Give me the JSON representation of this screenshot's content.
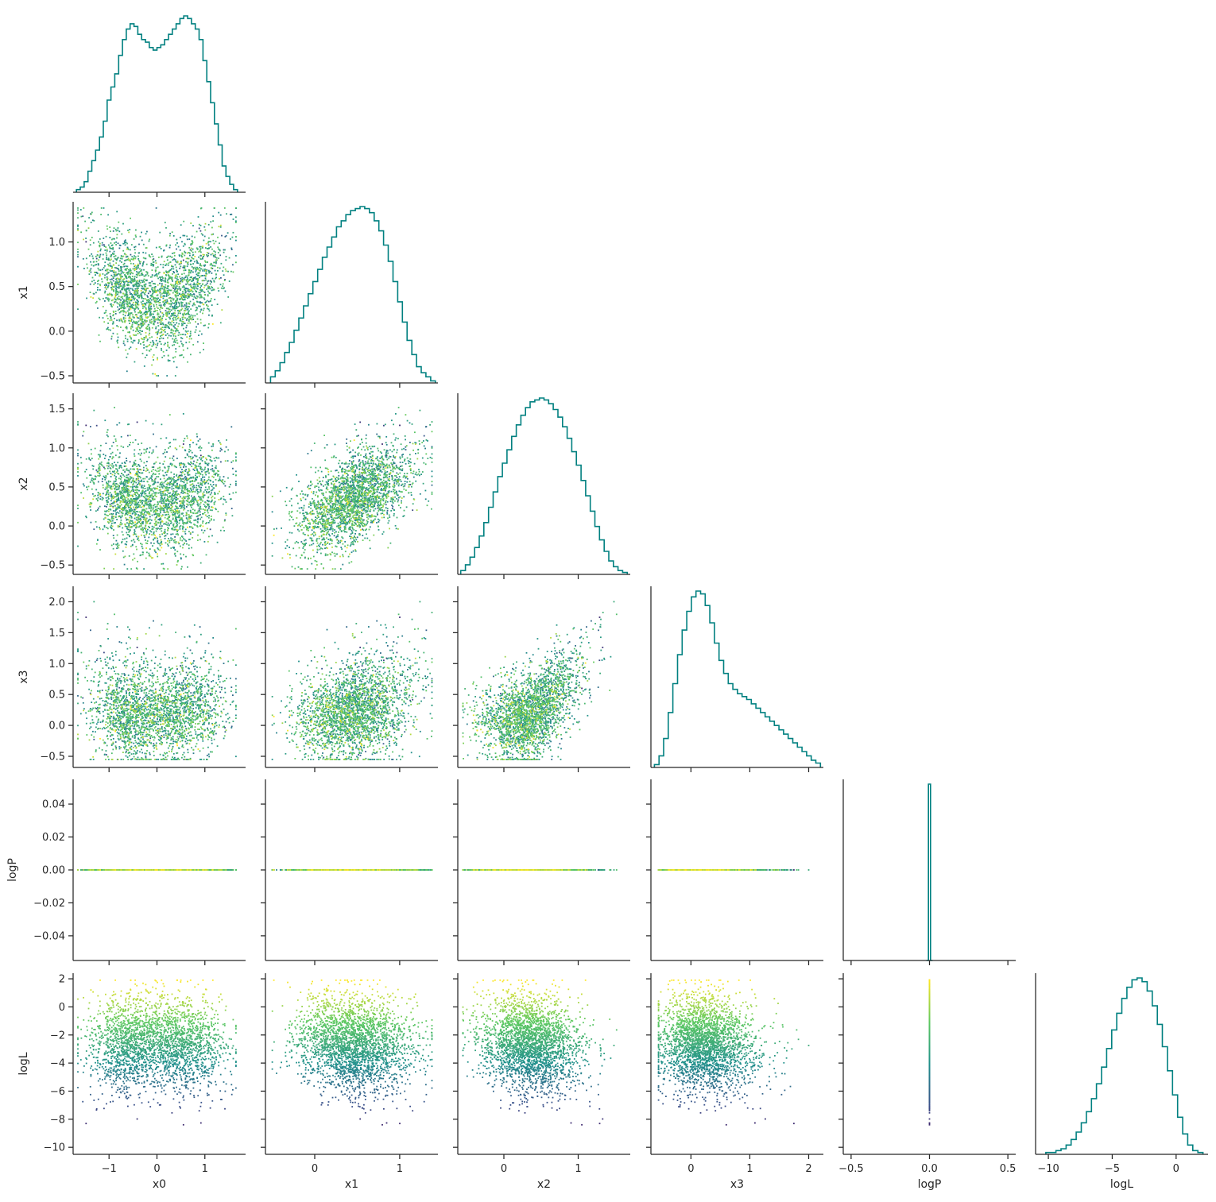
{
  "chart_data": {
    "type": "scatter",
    "subtype": "corner-plot",
    "parameters": [
      "x0",
      "x1",
      "x2",
      "x3",
      "logP",
      "logL"
    ],
    "axis_labels": [
      "x0",
      "x1",
      "x2",
      "x3",
      "logP",
      "logL"
    ],
    "diagonal": "histogram",
    "hist_color": "#008080",
    "point_color_by": "logL",
    "colormap": "viridis",
    "colormap_stops": [
      "#440154",
      "#3b528b",
      "#21918c",
      "#5ec962",
      "#fde725"
    ],
    "grid": false,
    "n_points_drawn": 2600,
    "axes": {
      "x0": {
        "lim": [
          -1.75,
          1.85
        ],
        "ticks": [
          -1,
          0,
          1
        ],
        "tick_labels": [
          "−1",
          "0",
          "1"
        ]
      },
      "x1": {
        "lim": [
          -0.58,
          1.45
        ],
        "ticks": [
          -0.5,
          0.0,
          0.5,
          1.0
        ],
        "tick_labels": [
          "−0.5",
          "0.0",
          "0.5",
          "1.0"
        ],
        "xticks": [
          0,
          1
        ],
        "xtick_labels": [
          "0",
          "1"
        ]
      },
      "x2": {
        "lim": [
          -0.62,
          1.7
        ],
        "ticks": [
          -0.5,
          0.0,
          0.5,
          1.0,
          1.5
        ],
        "tick_labels": [
          "−0.5",
          "0.0",
          "0.5",
          "1.0",
          "1.5"
        ],
        "xticks": [
          0,
          1
        ],
        "xtick_labels": [
          "0",
          "1"
        ]
      },
      "x3": {
        "lim": [
          -0.68,
          2.25
        ],
        "ticks": [
          -0.5,
          0.0,
          0.5,
          1.0,
          1.5,
          2.0
        ],
        "tick_labels": [
          "−0.5",
          "0.0",
          "0.5",
          "1.0",
          "1.5",
          "2.0"
        ],
        "xticks": [
          0,
          1,
          2
        ],
        "xtick_labels": [
          "0",
          "1",
          "2"
        ]
      },
      "logP": {
        "lim": [
          -0.055,
          0.055
        ],
        "ticks": [
          -0.04,
          -0.02,
          0.0,
          0.02,
          0.04
        ],
        "tick_labels": [
          "−0.04",
          "−0.02",
          "0.00",
          "0.02",
          "0.04"
        ],
        "xlim": [
          -0.55,
          0.55
        ],
        "xticks": [
          -0.5,
          0.0,
          0.5
        ],
        "xtick_labels": [
          "−0.5",
          "0.0",
          "0.5"
        ]
      },
      "logL": {
        "lim": [
          -10.5,
          2.4
        ],
        "ticks": [
          -10,
          -8,
          -6,
          -4,
          -2,
          0,
          2
        ],
        "tick_labels": [
          "−10",
          "−8",
          "−6",
          "−4",
          "−2",
          "0",
          "2"
        ],
        "xlim": [
          -11,
          2.5
        ],
        "xticks": [
          -10,
          -5,
          0
        ],
        "xtick_labels": [
          "−10",
          "−5",
          "0"
        ]
      }
    },
    "histograms": {
      "x0": {
        "range": [
          -1.68,
          1.68
        ],
        "counts": [
          1,
          2,
          4,
          8,
          12,
          16,
          21,
          27,
          35,
          40,
          45,
          52,
          58,
          62,
          64,
          63,
          60,
          58,
          57,
          55,
          54,
          55,
          56,
          58,
          60,
          62,
          64,
          66,
          67,
          66,
          64,
          62,
          58,
          50,
          42,
          34,
          26,
          18,
          10,
          6,
          3,
          1
        ]
      },
      "x1": {
        "range": [
          -0.52,
          1.42
        ],
        "counts": [
          3,
          6,
          10,
          15,
          20,
          26,
          32,
          38,
          44,
          50,
          56,
          62,
          67,
          72,
          77,
          80,
          83,
          85,
          86,
          87,
          86,
          84,
          80,
          75,
          68,
          60,
          50,
          40,
          30,
          21,
          14,
          8,
          5,
          3,
          1
        ]
      },
      "x2": {
        "range": [
          -0.58,
          1.66
        ],
        "counts": [
          2,
          5,
          9,
          14,
          20,
          27,
          35,
          43,
          51,
          58,
          65,
          72,
          78,
          83,
          87,
          90,
          91,
          92,
          91,
          89,
          86,
          82,
          77,
          71,
          64,
          57,
          49,
          41,
          33,
          25,
          18,
          12,
          7,
          4,
          2,
          1
        ]
      },
      "x3": {
        "range": [
          -0.62,
          2.2
        ],
        "counts": [
          2,
          8,
          20,
          38,
          58,
          78,
          95,
          108,
          118,
          122,
          120,
          112,
          100,
          86,
          74,
          65,
          58,
          54,
          51,
          49,
          47,
          44,
          41,
          38,
          35,
          32,
          29,
          26,
          23,
          20,
          17,
          14,
          11,
          8,
          5,
          3
        ]
      },
      "logP": {
        "range": [
          -0.02,
          0.02
        ],
        "counts": [
          0,
          10000,
          0
        ]
      },
      "logL": {
        "range": [
          -10.2,
          2.1
        ],
        "counts": [
          1,
          1,
          2,
          3,
          5,
          8,
          12,
          17,
          23,
          30,
          38,
          47,
          57,
          67,
          76,
          84,
          90,
          94,
          95,
          93,
          88,
          80,
          70,
          58,
          45,
          32,
          20,
          11,
          5,
          2,
          1
        ]
      }
    }
  }
}
